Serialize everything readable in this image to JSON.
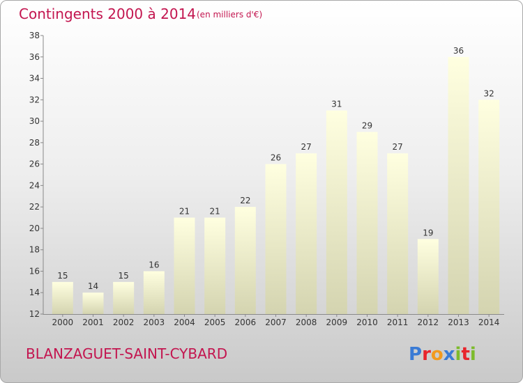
{
  "chart_data": {
    "type": "bar",
    "title": "Contingents 2000 à 2014",
    "subtitle": "(en milliers d'€)",
    "categories": [
      "2000",
      "2001",
      "2002",
      "2003",
      "2004",
      "2005",
      "2006",
      "2007",
      "2008",
      "2009",
      "2010",
      "2011",
      "2012",
      "2013",
      "2014"
    ],
    "values": [
      15,
      14,
      15,
      16,
      21,
      21,
      22,
      26,
      27,
      31,
      29,
      27,
      19,
      36,
      32
    ],
    "xlabel": "",
    "ylabel": "",
    "ylim": [
      12,
      38
    ],
    "yticks": [
      12,
      14,
      16,
      18,
      20,
      22,
      24,
      26,
      28,
      30,
      32,
      34,
      36,
      38
    ],
    "grid": false,
    "data_labels": true
  },
  "footer": {
    "commune": "BLANZAGUET-SAINT-CYBARD",
    "logo": "Proxiti"
  },
  "colors": {
    "title": "#c3154f",
    "bar_top": "#ffffe0",
    "bar_bottom": "#d4d4b0",
    "logo_letters": [
      "#3a7bd5",
      "#e8242c",
      "#f29a1f",
      "#3a7bd5",
      "#7dbb2c",
      "#e8242c",
      "#7dbb2c"
    ]
  }
}
